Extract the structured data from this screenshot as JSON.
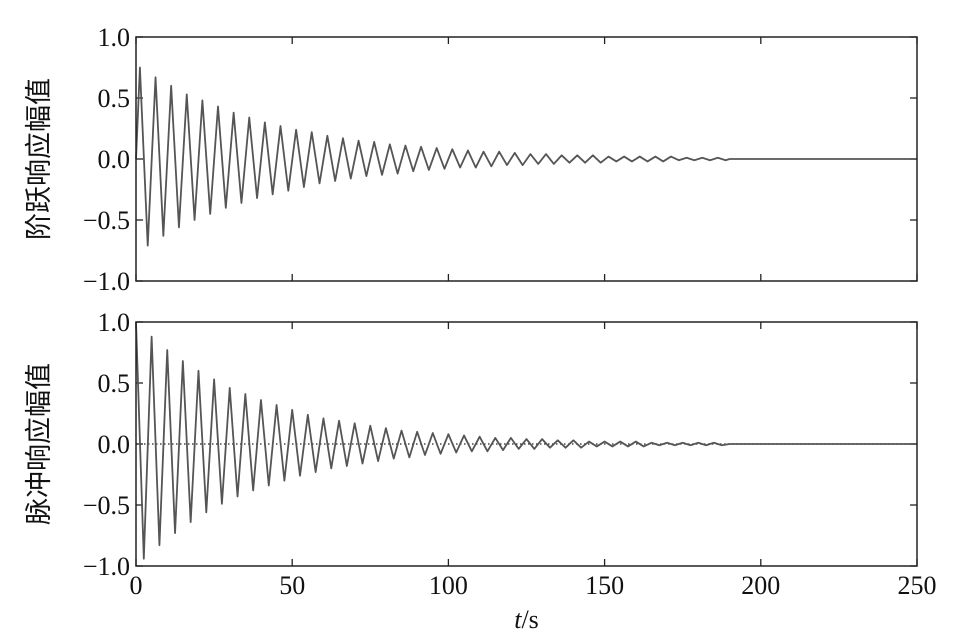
{
  "chart_data": [
    {
      "type": "line",
      "ylabel": "阶跃响应幅值",
      "show_xtick_labels": false,
      "x": [
        0,
        1.25,
        3.75,
        6.25,
        8.75,
        11.25,
        13.75,
        16.25,
        18.75,
        21.25,
        23.75,
        26.25,
        28.75,
        31.25,
        33.75,
        36.25,
        38.75,
        41.25,
        43.75,
        46.25,
        48.75,
        51.25,
        53.75,
        56.25,
        58.75,
        61.25,
        63.75,
        66.25,
        68.75,
        71.25,
        73.75,
        76.25,
        78.75,
        81.25,
        83.75,
        86.25,
        88.75,
        91.25,
        93.75,
        96.25,
        98.75,
        101.25,
        103.75,
        106.25,
        108.75,
        111.25,
        113.75,
        116.25,
        118.75,
        121.25,
        123.75,
        126.25,
        128.75,
        131.25,
        133.75,
        136.25,
        138.75,
        141.25,
        143.75,
        146.25,
        148.75,
        151.25,
        153.75,
        156.25,
        158.75,
        161.25,
        163.75,
        166.25,
        168.75,
        171.25,
        173.75,
        176.25,
        178.75,
        181.25,
        183.75,
        186.25,
        188.75,
        190,
        250
      ],
      "series": [
        {
          "color": "#555555",
          "values": [
            0,
            0.75,
            -0.71,
            0.67,
            -0.63,
            0.6,
            -0.56,
            0.53,
            -0.5,
            0.48,
            -0.45,
            0.43,
            -0.4,
            0.38,
            -0.36,
            0.34,
            -0.32,
            0.3,
            -0.29,
            0.27,
            -0.26,
            0.24,
            -0.23,
            0.22,
            -0.2,
            0.19,
            -0.18,
            0.17,
            -0.16,
            0.15,
            -0.14,
            0.14,
            -0.13,
            0.12,
            -0.12,
            0.11,
            -0.1,
            0.1,
            -0.09,
            0.09,
            -0.08,
            0.08,
            -0.07,
            0.07,
            -0.07,
            0.06,
            -0.06,
            0.06,
            -0.05,
            0.05,
            -0.05,
            0.04,
            -0.04,
            0.04,
            -0.04,
            0.03,
            -0.03,
            0.03,
            -0.03,
            0.03,
            -0.03,
            0.02,
            -0.02,
            0.02,
            -0.02,
            0.02,
            -0.02,
            0.02,
            -0.02,
            0.02,
            -0.01,
            0.01,
            -0.01,
            0.01,
            -0.01,
            0.01,
            -0.01,
            0,
            0
          ]
        }
      ],
      "xlim": [
        0,
        250
      ],
      "xticks": [
        0,
        50,
        100,
        150,
        200,
        250
      ],
      "ylim": [
        -1,
        1
      ],
      "yticks": [
        {
          "value": -1,
          "label": "−1.0"
        },
        {
          "value": -0.5,
          "label": "−0.5"
        },
        {
          "value": 0,
          "label": "0.0"
        },
        {
          "value": 0.5,
          "label": "0.5"
        },
        {
          "value": 1,
          "label": "1.0"
        }
      ]
    },
    {
      "type": "line",
      "ylabel": "脉冲响应幅值",
      "show_xtick_labels": true,
      "zero_line": "dotted",
      "xlabel_var": "t",
      "xlabel_unit": "/s",
      "x": [
        0,
        2.5,
        5,
        7.5,
        10,
        12.5,
        15,
        17.5,
        20,
        22.5,
        25,
        27.5,
        30,
        32.5,
        35,
        37.5,
        40,
        42.5,
        45,
        47.5,
        50,
        52.5,
        55,
        57.5,
        60,
        62.5,
        65,
        67.5,
        70,
        72.5,
        75,
        77.5,
        80,
        82.5,
        85,
        87.5,
        90,
        92.5,
        95,
        97.5,
        100,
        102.5,
        105,
        107.5,
        110,
        112.5,
        115,
        117.5,
        120,
        122.5,
        125,
        127.5,
        130,
        132.5,
        135,
        137.5,
        140,
        142.5,
        145,
        147.5,
        150,
        152.5,
        155,
        157.5,
        160,
        162.5,
        165,
        167.5,
        170,
        172.5,
        175,
        177.5,
        180,
        182.5,
        185,
        187.5,
        190,
        250
      ],
      "series": [
        {
          "color": "#555555",
          "values": [
            1,
            -0.94,
            0.88,
            -0.83,
            0.77,
            -0.73,
            0.68,
            -0.64,
            0.6,
            -0.56,
            0.53,
            -0.49,
            0.46,
            -0.43,
            0.41,
            -0.38,
            0.36,
            -0.34,
            0.32,
            -0.3,
            0.28,
            -0.26,
            0.24,
            -0.23,
            0.21,
            -0.2,
            0.19,
            -0.18,
            0.17,
            -0.16,
            0.15,
            -0.14,
            0.13,
            -0.12,
            0.11,
            -0.11,
            0.1,
            -0.09,
            0.09,
            -0.08,
            0.08,
            -0.07,
            0.07,
            -0.06,
            0.06,
            -0.06,
            0.05,
            -0.05,
            0.05,
            -0.04,
            0.04,
            -0.04,
            0.04,
            -0.03,
            0.03,
            -0.03,
            0.03,
            -0.03,
            0.02,
            -0.02,
            0.02,
            -0.02,
            0.02,
            -0.02,
            0.02,
            -0.02,
            0.01,
            -0.01,
            0.01,
            -0.01,
            0.01,
            -0.01,
            0.01,
            -0.01,
            0.01,
            -0.01,
            0,
            0
          ]
        }
      ],
      "xlim": [
        0,
        250
      ],
      "xticks": [
        0,
        50,
        100,
        150,
        200,
        250
      ],
      "ylim": [
        -1,
        1
      ],
      "yticks": [
        {
          "value": -1,
          "label": "−1.0"
        },
        {
          "value": -0.5,
          "label": "−0.5"
        },
        {
          "value": 0,
          "label": "0.0"
        },
        {
          "value": 0.5,
          "label": "0.5"
        },
        {
          "value": 1,
          "label": "1.0"
        }
      ]
    }
  ]
}
